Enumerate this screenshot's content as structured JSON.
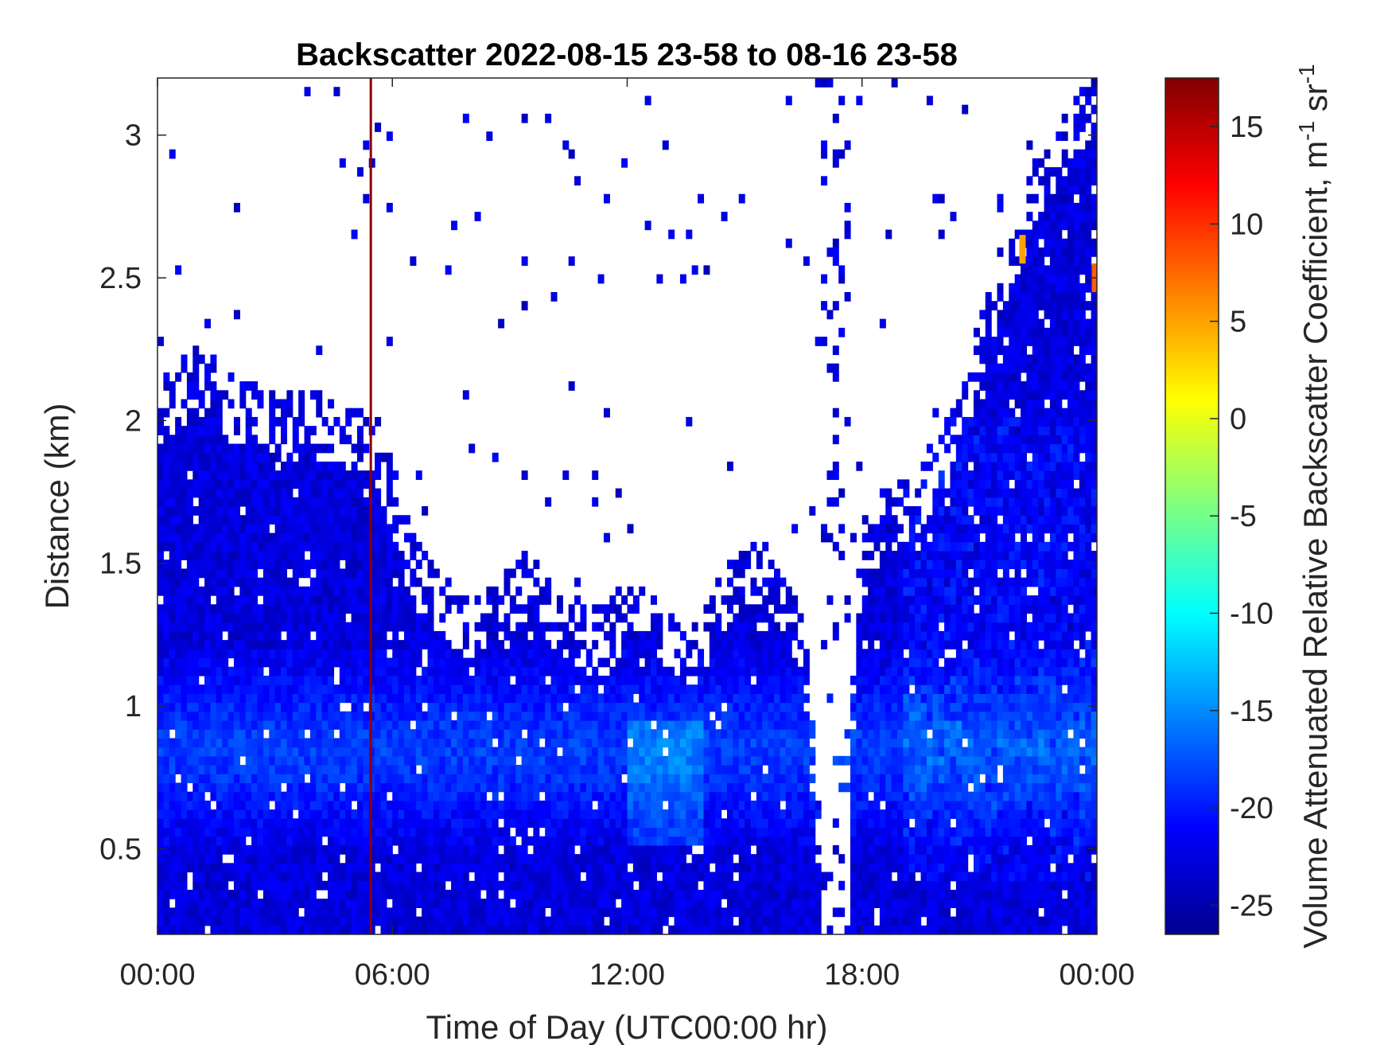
{
  "chart_data": {
    "type": "heatmap",
    "title": "Backscatter 2022-08-15 23-58 to 08-16 23-58",
    "xlabel": "Time of Day (UTC00:00 hr)",
    "ylabel": "Distance (km)",
    "xlim": [
      0,
      24
    ],
    "ylim": [
      0.2,
      3.2
    ],
    "xticks": [
      0,
      6,
      12,
      18,
      24
    ],
    "xtick_labels": [
      "00:00",
      "06:00",
      "12:00",
      "18:00",
      "00:00"
    ],
    "yticks": [
      0.5,
      1,
      1.5,
      2,
      2.5,
      3
    ],
    "ytick_labels": [
      "0.5",
      "1",
      "1.5",
      "2",
      "2.5",
      "3"
    ],
    "colorbar": {
      "label_main": "Volume Attenuated Relative Backscatter Coefficient, m",
      "label_sup1": "-1",
      "label_mid": " sr",
      "label_sup2": "-1",
      "colormap": "jet",
      "clim": [
        -26.5,
        17.5
      ],
      "ticks": [
        15,
        10,
        5,
        0,
        -5,
        -10,
        -15,
        -20,
        -25
      ],
      "tick_labels": [
        "15",
        "10",
        "5",
        "0",
        "-5",
        "-10",
        "-15",
        "-20",
        "-25"
      ]
    },
    "grid": false,
    "data_approx": {
      "description_units": "time in hours, aerosol layer top in km; background backscatter around -22 to -18, enhanced layer near 0.7-1.0 km",
      "layer_top_km": [
        [
          0.0,
          2.0
        ],
        [
          1.0,
          2.1
        ],
        [
          2.0,
          2.0
        ],
        [
          3.0,
          1.95
        ],
        [
          4.0,
          1.95
        ],
        [
          5.0,
          1.9
        ],
        [
          5.5,
          1.9
        ],
        [
          6.0,
          1.7
        ],
        [
          6.5,
          1.45
        ],
        [
          7.0,
          1.35
        ],
        [
          7.5,
          1.3
        ],
        [
          8.0,
          1.25
        ],
        [
          8.5,
          1.3
        ],
        [
          9.0,
          1.35
        ],
        [
          9.5,
          1.4
        ],
        [
          10.0,
          1.3
        ],
        [
          10.5,
          1.25
        ],
        [
          11.0,
          1.2
        ],
        [
          11.5,
          1.2
        ],
        [
          12.0,
          1.3
        ],
        [
          12.5,
          1.25
        ],
        [
          13.0,
          1.2
        ],
        [
          13.5,
          1.1
        ],
        [
          14.0,
          1.2
        ],
        [
          14.5,
          1.35
        ],
        [
          15.0,
          1.4
        ],
        [
          15.5,
          1.45
        ],
        [
          16.0,
          1.3
        ],
        [
          16.5,
          1.2
        ],
        [
          17.0,
          0.3
        ],
        [
          17.5,
          0.3
        ],
        [
          18.0,
          1.5
        ],
        [
          18.5,
          1.6
        ],
        [
          19.0,
          1.65
        ],
        [
          19.5,
          1.7
        ],
        [
          20.0,
          1.8
        ],
        [
          20.5,
          1.95
        ],
        [
          21.0,
          2.2
        ],
        [
          21.5,
          2.45
        ],
        [
          22.0,
          2.6
        ],
        [
          22.5,
          2.8
        ],
        [
          23.0,
          2.9
        ],
        [
          23.5,
          3.0
        ],
        [
          24.0,
          3.1
        ]
      ],
      "high_signal_line_hour": 5.45,
      "high_signal_line_value": 17,
      "peak_values": [
        {
          "hour": 22.1,
          "km": 2.6,
          "value": 5
        },
        {
          "hour": 23.95,
          "km": 2.5,
          "value": 8
        }
      ]
    }
  }
}
